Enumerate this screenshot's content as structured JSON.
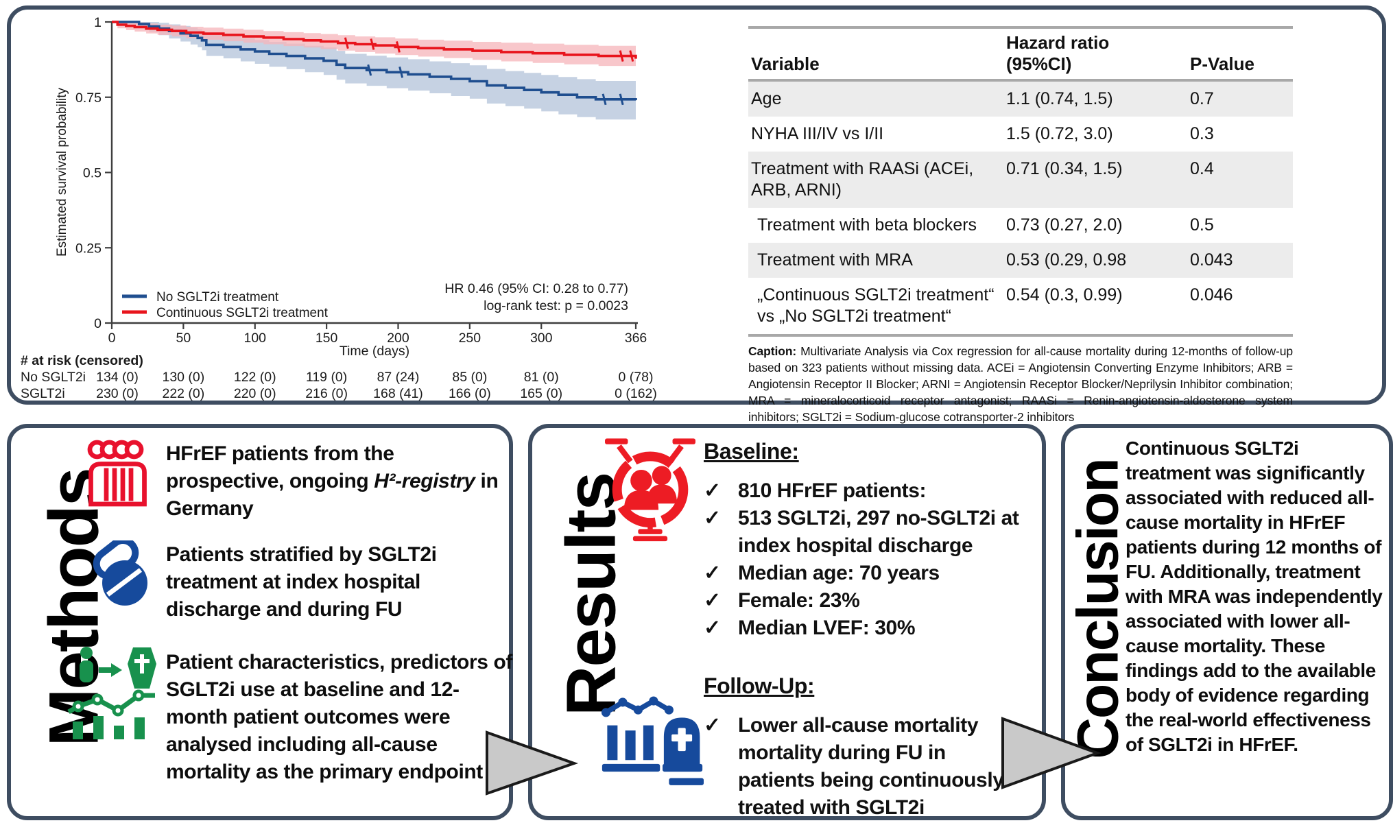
{
  "colors": {
    "panel_border": "#3e4d61",
    "km_blue": "#1f4e8f",
    "km_blue_band": "#b3c3da",
    "km_red": "#e8141c",
    "km_red_band": "#f5b4b9",
    "table_row_shade": "#ececec",
    "table_rule": "#a8a8a8",
    "icon_red": "#e8112d",
    "icon_blue": "#164a9c",
    "icon_green": "#18914d",
    "arrow_fill": "#c9c9c9",
    "arrow_stroke": "#1a1a1a"
  },
  "chart_data": {
    "type": "line",
    "subtype": "kaplan-meier-step",
    "title": "",
    "xlabel": "Time (days)",
    "ylabel": "Estimated survival probability",
    "xlim": [
      0,
      366
    ],
    "ylim": [
      0,
      1
    ],
    "grid": false,
    "legend_position": "inside-bottom-left",
    "x_ticks": [
      0,
      50,
      100,
      150,
      200,
      250,
      300,
      366
    ],
    "x_tick_labels": [
      "0",
      "50",
      "100",
      "150",
      "200",
      "250",
      "300",
      "366"
    ],
    "y_ticks": [
      0,
      0.25,
      0.5,
      0.75,
      1
    ],
    "y_tick_labels": [
      "0",
      "0.25",
      "0.5",
      "0.75",
      "1"
    ],
    "annotation": [
      "HR 0.46 (95% CI: 0.28 to 0.77)",
      "log-rank test: p =  0.0023"
    ],
    "series": [
      {
        "name": "No SGLT2i treatment",
        "color": "#1f4e8f",
        "band_color": "#b3c3da",
        "points": [
          [
            0,
            1.0,
            1.0,
            1.0
          ],
          [
            19,
            0.993,
            0.98,
            1.0
          ],
          [
            26,
            0.985,
            0.967,
            1.0
          ],
          [
            33,
            0.978,
            0.956,
            0.997
          ],
          [
            40,
            0.97,
            0.945,
            0.992
          ],
          [
            48,
            0.962,
            0.935,
            0.987
          ],
          [
            55,
            0.954,
            0.925,
            0.981
          ],
          [
            60,
            0.947,
            0.916,
            0.976
          ],
          [
            63,
            0.939,
            0.906,
            0.97
          ],
          [
            66,
            0.924,
            0.887,
            0.958
          ],
          [
            78,
            0.917,
            0.879,
            0.952
          ],
          [
            90,
            0.909,
            0.869,
            0.946
          ],
          [
            100,
            0.902,
            0.861,
            0.94
          ],
          [
            110,
            0.894,
            0.851,
            0.934
          ],
          [
            122,
            0.887,
            0.843,
            0.928
          ],
          [
            135,
            0.879,
            0.833,
            0.921
          ],
          [
            148,
            0.871,
            0.824,
            0.915
          ],
          [
            157,
            0.858,
            0.808,
            0.904
          ],
          [
            163,
            0.847,
            0.796,
            0.894
          ],
          [
            178,
            0.84,
            0.788,
            0.888
          ],
          [
            192,
            0.833,
            0.78,
            0.882
          ],
          [
            207,
            0.826,
            0.772,
            0.876
          ],
          [
            222,
            0.818,
            0.763,
            0.869
          ],
          [
            237,
            0.811,
            0.754,
            0.863
          ],
          [
            250,
            0.803,
            0.745,
            0.856
          ],
          [
            262,
            0.789,
            0.729,
            0.844
          ],
          [
            275,
            0.781,
            0.72,
            0.837
          ],
          [
            288,
            0.774,
            0.712,
            0.831
          ],
          [
            300,
            0.766,
            0.703,
            0.824
          ],
          [
            312,
            0.758,
            0.693,
            0.817
          ],
          [
            325,
            0.75,
            0.684,
            0.81
          ],
          [
            338,
            0.743,
            0.676,
            0.804
          ],
          [
            366,
            0.74,
            0.672,
            0.801
          ]
        ],
        "censor_days": [
          180,
          202,
          344,
          356
        ]
      },
      {
        "name": "Continuous SGLT2i treatment",
        "color": "#e8141c",
        "band_color": "#f5b4b9",
        "points": [
          [
            0,
            1.0,
            1.0,
            1.0
          ],
          [
            4,
            0.991,
            0.979,
            1.0
          ],
          [
            10,
            0.987,
            0.973,
            1.0
          ],
          [
            16,
            0.983,
            0.968,
            0.998
          ],
          [
            24,
            0.978,
            0.962,
            0.995
          ],
          [
            32,
            0.974,
            0.957,
            0.991
          ],
          [
            42,
            0.97,
            0.952,
            0.988
          ],
          [
            52,
            0.965,
            0.946,
            0.984
          ],
          [
            64,
            0.961,
            0.941,
            0.981
          ],
          [
            78,
            0.957,
            0.936,
            0.978
          ],
          [
            92,
            0.952,
            0.931,
            0.974
          ],
          [
            106,
            0.948,
            0.926,
            0.97
          ],
          [
            120,
            0.943,
            0.92,
            0.966
          ],
          [
            134,
            0.939,
            0.915,
            0.963
          ],
          [
            146,
            0.935,
            0.91,
            0.96
          ],
          [
            158,
            0.93,
            0.905,
            0.956
          ],
          [
            170,
            0.926,
            0.9,
            0.952
          ],
          [
            184,
            0.922,
            0.895,
            0.949
          ],
          [
            198,
            0.917,
            0.89,
            0.945
          ],
          [
            214,
            0.913,
            0.885,
            0.941
          ],
          [
            232,
            0.909,
            0.88,
            0.938
          ],
          [
            252,
            0.904,
            0.874,
            0.934
          ],
          [
            272,
            0.9,
            0.869,
            0.931
          ],
          [
            294,
            0.896,
            0.864,
            0.928
          ],
          [
            316,
            0.891,
            0.859,
            0.924
          ],
          [
            340,
            0.887,
            0.854,
            0.921
          ],
          [
            366,
            0.878,
            0.843,
            0.914
          ]
        ],
        "censor_days": [
          164,
          182,
          200,
          356,
          363
        ]
      }
    ],
    "risk_table": {
      "header": "# at risk (censored)",
      "rows": [
        {
          "label": "No SGLT2i",
          "values": [
            "134 (0)",
            "130 (0)",
            "122 (0)",
            "119 (0)",
            "87 (24)",
            "85 (0)",
            "81 (0)",
            "0 (78)"
          ]
        },
        {
          "label": "SGLT2i",
          "values": [
            "230 (0)",
            "222 (0)",
            "220 (0)",
            "216 (0)",
            "168 (41)",
            "166 (0)",
            "165 (0)",
            "0 (162)"
          ]
        }
      ]
    }
  },
  "hazard_table": {
    "header": {
      "col1": "Variable",
      "col2_line1": "Hazard ratio",
      "col2_line2": "(95%CI)",
      "col3": "P-Value"
    },
    "rows": [
      {
        "variable": "Age",
        "hr": "1.1 (0.74, 1.5)",
        "p": "0.7"
      },
      {
        "variable": "NYHA III/IV vs I/II",
        "hr": "1.5 (0.72, 3.0)",
        "p": "0.3"
      },
      {
        "variable": "Treatment with RAASi (ACEi, ARB, ARNI)",
        "hr": "0.71 (0.34, 1.5)",
        "p": "0.4"
      },
      {
        "variable": "Treatment with beta blockers",
        "hr": "0.73 (0.27, 2.0)",
        "p": "0.5"
      },
      {
        "variable": "Treatment with MRA",
        "hr": "0.53 (0.29, 0.98",
        "p": "0.043"
      },
      {
        "variable": "„Continuous SGLT2i treatment“ vs „No SGLT2i treatment“",
        "hr": "0.54 (0.3, 0.99)",
        "p": "0.046"
      }
    ],
    "caption_label": "Caption:",
    "caption_text": " Multivariate Analysis via Cox regression for all-cause mortality during 12-months of follow-up based on 323 patients without missing data. ACEi = Angiotensin Converting Enzyme Inhibitors; ARB = Angiotensin Receptor II Blocker; ARNI = Angiotensin Receptor Blocker/Neprilysin Inhibitor combination; MRA = mineralocorticoid receptor antagonist; RAASi = Renin-angiotensin-aldosterone system inhibitors; SGLT2i = Sodium-glucose cotransporter-2 inhibitors"
  },
  "methods": {
    "title": "Methods",
    "item1_pre": "HFrEF patients from the prospective, ongoing ",
    "item1_italic": "H²-registry",
    "item1_post": " in Germany",
    "item2": "Patients stratified by SGLT2i treatment at index hospital discharge and during FU",
    "item3": "Patient characteristics, predictors of SGLT2i use at baseline and 12-month patient outcomes were analysed including all-cause mortality as the primary endpoint"
  },
  "results": {
    "title": "Results",
    "check": "✓",
    "baseline_heading": "Baseline:",
    "baseline_bullets": [
      "810 HFrEF patients:",
      "513 SGLT2i, 297 no-SGLT2i at index hospital discharge",
      "Median age: 70 years",
      "Female: 23%",
      "Median LVEF: 30%"
    ],
    "followup_heading": "Follow-Up:",
    "followup_bullets": [
      "Lower all-cause mortality mortality during FU in patients being continuously treated with SGLT2i"
    ]
  },
  "conclusion": {
    "title": "Conclusion",
    "text": "Continuous SGLT2i treatment was significantly associated with reduced all-cause mortality in HFrEF patients during 12 months of FU. Additionally, treatment with MRA was independently associated with lower all-cause mortality. These findings add to the available body of evidence regarding the real-world effectiveness of SGLT2i in HFrEF."
  }
}
